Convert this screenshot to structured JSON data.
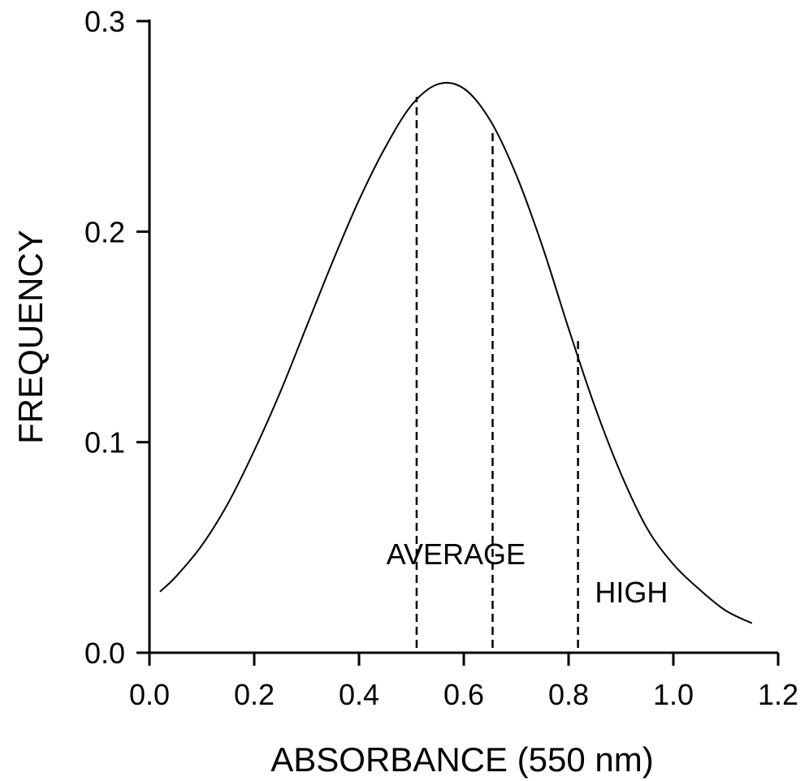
{
  "chart_data": {
    "type": "line",
    "title": "",
    "xlabel": "ABSORBANCE (550 nm)",
    "ylabel": "FREQUENCY",
    "xlim": [
      0.0,
      1.2
    ],
    "ylim": [
      0.0,
      0.3
    ],
    "x_ticks": [
      "0.0",
      "0.2",
      "0.4",
      "0.6",
      "0.8",
      "1.0",
      "1.2"
    ],
    "y_ticks": [
      "0.0",
      "0.1",
      "0.2",
      "0.3"
    ],
    "grid": false,
    "legend": "none",
    "series": [
      {
        "x": [
          0.02,
          0.05,
          0.1,
          0.15,
          0.2,
          0.25,
          0.3,
          0.35,
          0.4,
          0.45,
          0.5,
          0.55,
          0.6,
          0.65,
          0.7,
          0.75,
          0.8,
          0.85,
          0.9,
          0.95,
          1.0,
          1.05,
          1.1,
          1.15
        ],
        "y": [
          0.029,
          0.036,
          0.051,
          0.071,
          0.096,
          0.124,
          0.155,
          0.186,
          0.215,
          0.24,
          0.26,
          0.27,
          0.268,
          0.253,
          0.227,
          0.193,
          0.154,
          0.117,
          0.085,
          0.059,
          0.042,
          0.03,
          0.02,
          0.014
        ]
      }
    ],
    "dividers": [
      {
        "x": 0.51,
        "y_top": 0.264
      },
      {
        "x": 0.655,
        "y_top": 0.247
      },
      {
        "x": 0.818,
        "y_top": 0.148
      }
    ],
    "annotations": [
      {
        "text": "AVERAGE",
        "x": 0.585,
        "y": 0.042
      },
      {
        "text": "HIGH",
        "x": 0.92,
        "y": 0.024
      }
    ]
  }
}
